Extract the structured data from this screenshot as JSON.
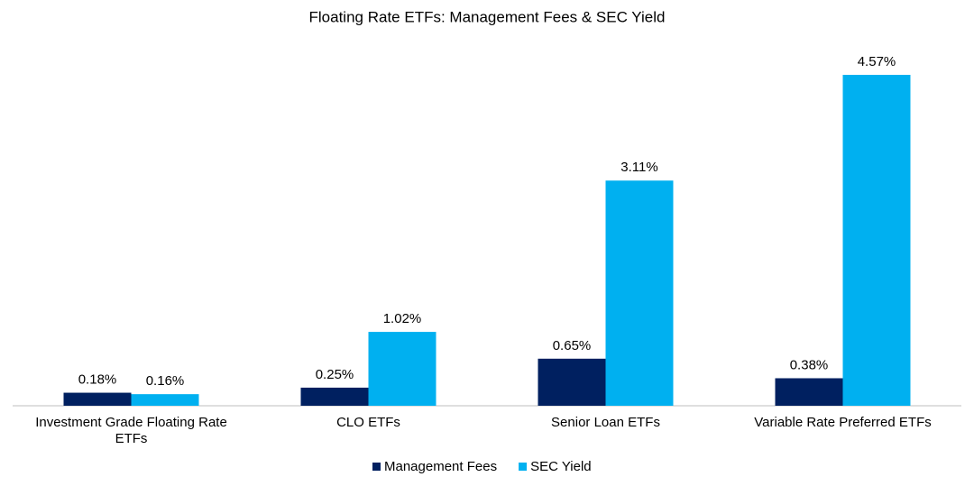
{
  "chart_data": {
    "type": "bar",
    "title": "Floating Rate ETFs: Management Fees & SEC Yield",
    "categories": [
      "Investment Grade Floating Rate ETFs",
      "CLO ETFs",
      "Senior Loan ETFs",
      "Variable Rate Preferred ETFs"
    ],
    "series": [
      {
        "name": "Management Fees",
        "color": "#002060",
        "values": [
          0.18,
          0.25,
          0.65,
          0.38
        ],
        "value_labels": [
          "0.18%",
          "0.25%",
          "0.65%",
          "0.38%"
        ]
      },
      {
        "name": "SEC Yield",
        "color": "#00b0f0",
        "values": [
          0.16,
          1.02,
          3.11,
          4.57
        ],
        "value_labels": [
          "0.16%",
          "1.02%",
          "3.11%",
          "4.57%"
        ]
      }
    ],
    "ylim": [
      0,
      5
    ],
    "legend": "bottom"
  }
}
